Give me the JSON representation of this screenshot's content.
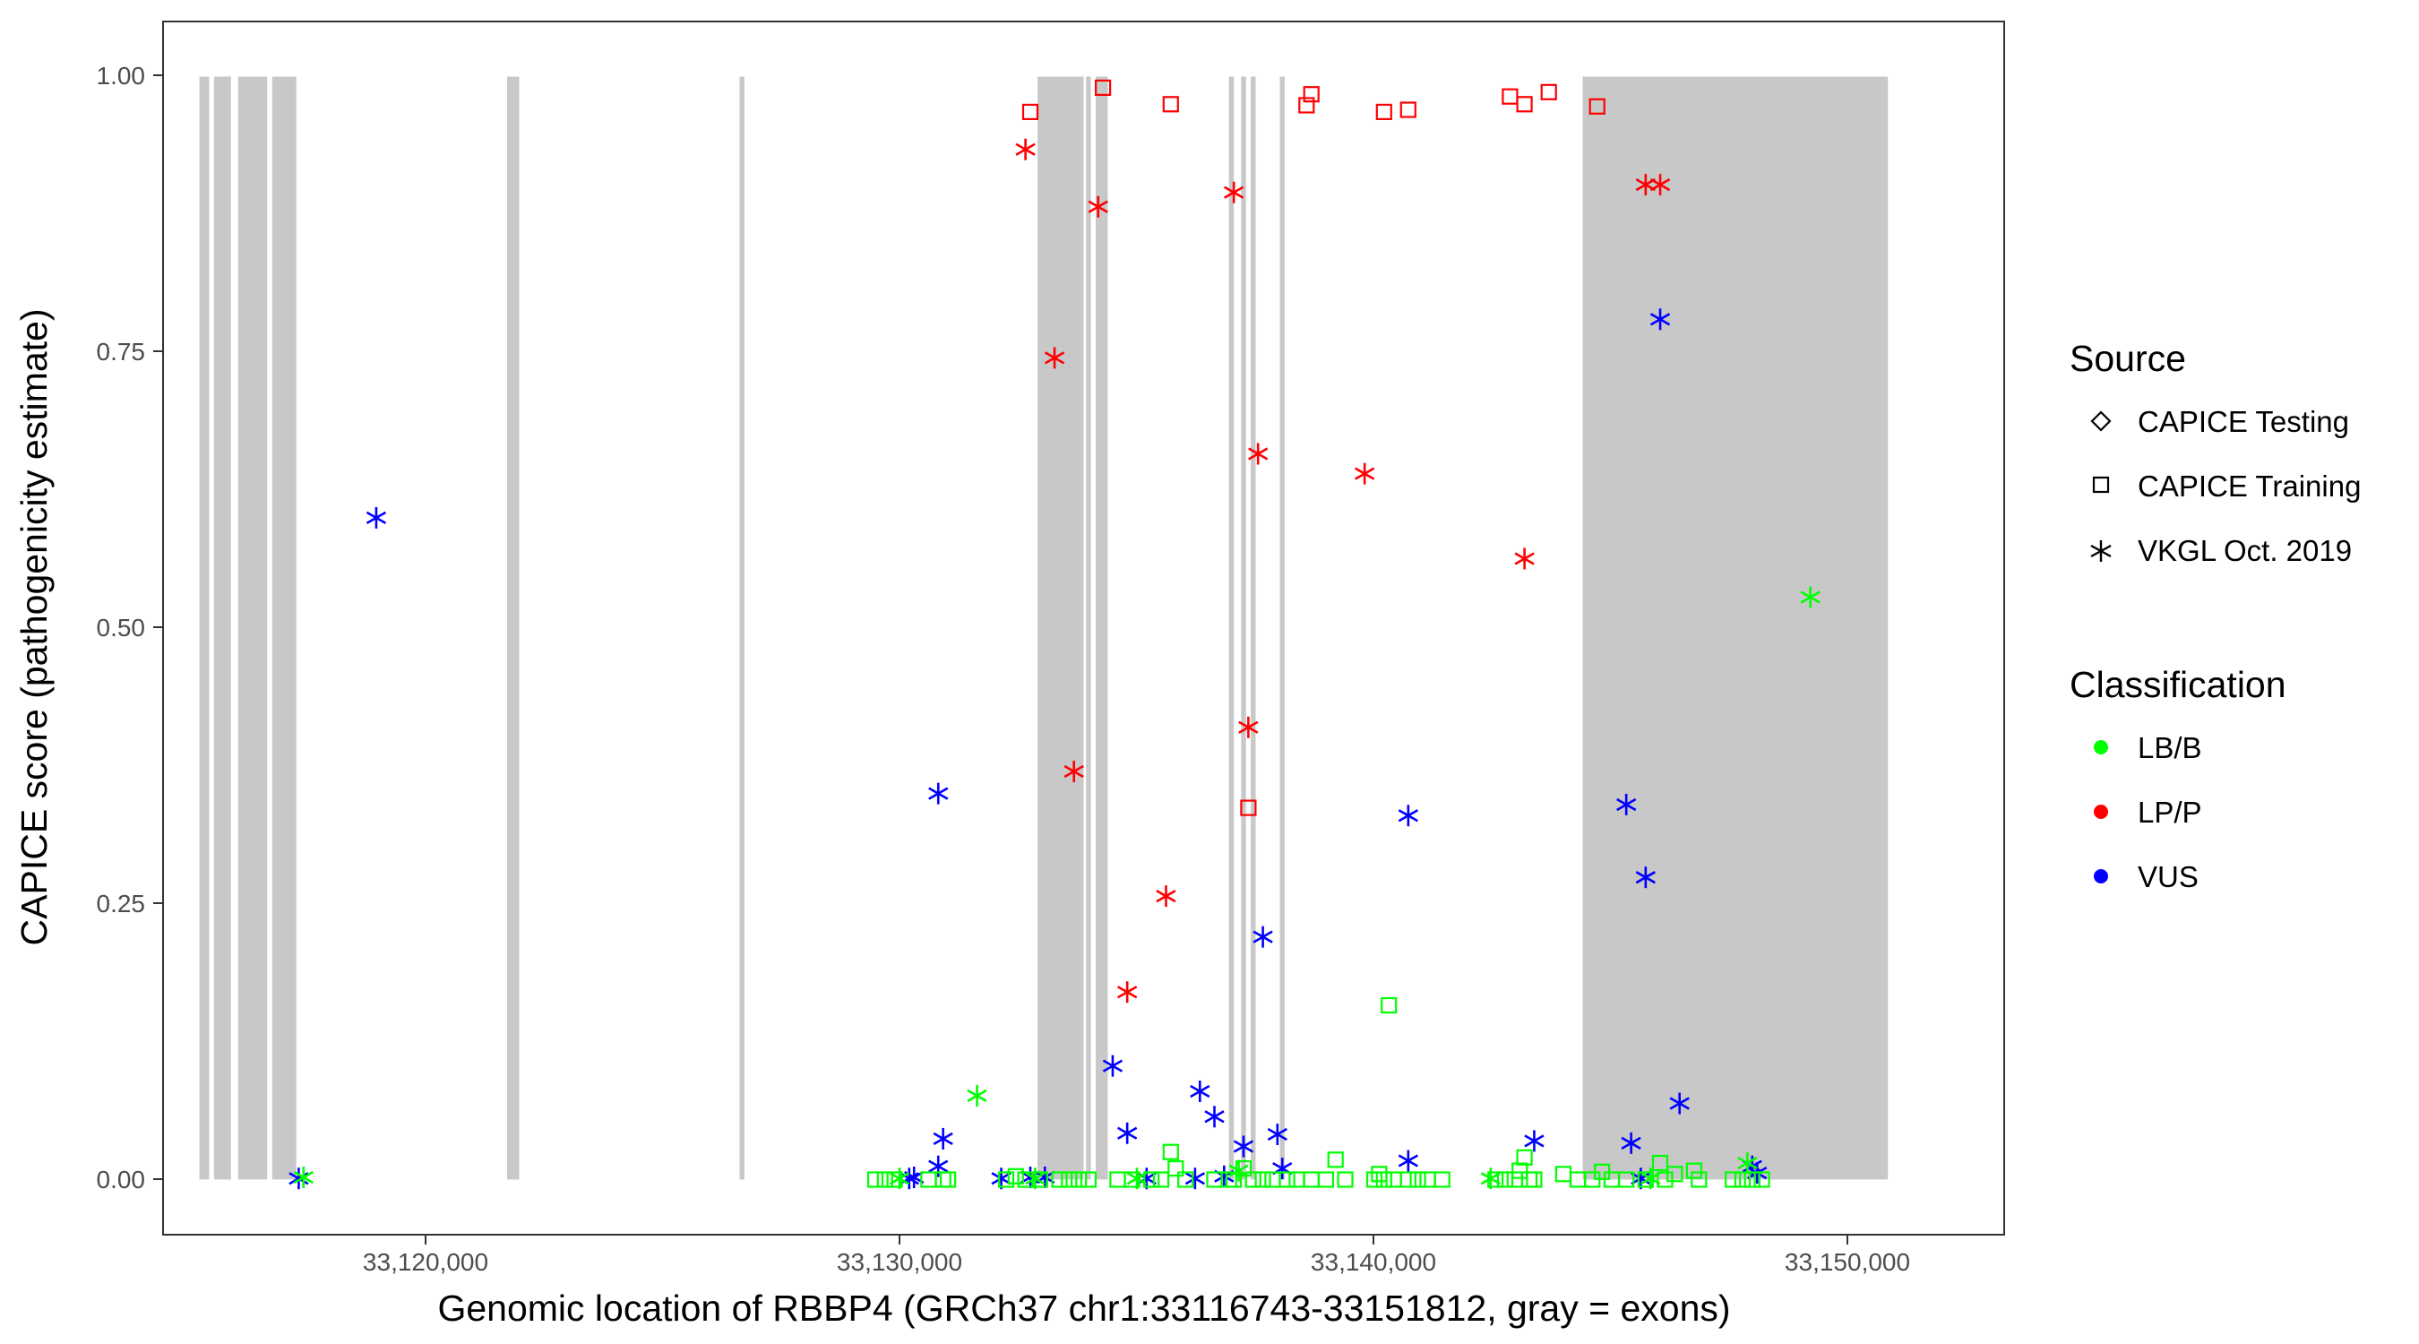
{
  "chart_data": {
    "type": "scatter",
    "xlabel": "Genomic location of RBBP4 (GRCh37 chr1:33116743-33151812, gray = exons)",
    "ylabel": "CAPICE score (pathogenicity estimate)",
    "xlim": [
      33116000,
      33154000
    ],
    "ylim": [
      -0.05,
      1.05
    ],
    "x_ticks": [
      33120000,
      33130000,
      33140000,
      33150000
    ],
    "x_tick_labels": [
      "33,120,000",
      "33,130,000",
      "33,140,000",
      "33,150,000"
    ],
    "y_ticks": [
      0,
      0.25,
      0.5,
      0.75,
      1.0
    ],
    "y_tick_labels": [
      "0.00",
      "0.25",
      "0.50",
      "0.75",
      "1.00"
    ],
    "grid": false,
    "exons": [
      [
        33116750,
        33116950
      ],
      [
        33117050,
        33117400
      ],
      [
        33117550,
        33118150
      ],
      [
        33118250,
        33118750
      ],
      [
        33123100,
        33123350
      ],
      [
        33127900,
        33128000
      ],
      [
        33134050,
        33135000
      ],
      [
        33135050,
        33135150
      ],
      [
        33135250,
        33135500
      ],
      [
        33138000,
        33138100
      ],
      [
        33138250,
        33138350
      ],
      [
        33138450,
        33138550
      ],
      [
        33139050,
        33139150
      ],
      [
        33145300,
        33151600
      ]
    ],
    "legend": {
      "position": "right",
      "source": {
        "title": "Source",
        "items": [
          {
            "label": "CAPICE Testing",
            "shape": "diamond"
          },
          {
            "label": "CAPICE Training",
            "shape": "square"
          },
          {
            "label": "VKGL Oct. 2019",
            "shape": "asterisk"
          }
        ]
      },
      "classification": {
        "title": "Classification",
        "items": [
          {
            "label": "LB/B",
            "color": "#00ff00"
          },
          {
            "label": "LP/P",
            "color": "#ff0000"
          },
          {
            "label": "VUS",
            "color": "#0000ff"
          }
        ]
      }
    },
    "series": [
      {
        "classification": "LP/P",
        "source": "CAPICE Training",
        "shape": "square",
        "color": "#ff0000",
        "points": [
          [
            33133900,
            0.968
          ],
          [
            33135400,
            0.99
          ],
          [
            33136800,
            0.975
          ],
          [
            33138400,
            0.337
          ],
          [
            33139600,
            0.974
          ],
          [
            33139700,
            0.984
          ],
          [
            33141200,
            0.968
          ],
          [
            33141700,
            0.97
          ],
          [
            33143800,
            0.982
          ],
          [
            33144100,
            0.975
          ],
          [
            33144600,
            0.986
          ],
          [
            33145600,
            0.973
          ]
        ]
      },
      {
        "classification": "LP/P",
        "source": "VKGL Oct. 2019",
        "shape": "asterisk",
        "color": "#ff0000",
        "points": [
          [
            33133800,
            0.934
          ],
          [
            33134400,
            0.745
          ],
          [
            33134800,
            0.37
          ],
          [
            33135300,
            0.882
          ],
          [
            33135900,
            0.17
          ],
          [
            33136700,
            0.257
          ],
          [
            33138100,
            0.895
          ],
          [
            33138400,
            0.41
          ],
          [
            33138600,
            0.658
          ],
          [
            33140800,
            0.64
          ],
          [
            33144100,
            0.563
          ],
          [
            33146600,
            0.902
          ],
          [
            33146900,
            0.902
          ]
        ]
      },
      {
        "classification": "VUS",
        "source": "VKGL Oct. 2019",
        "shape": "asterisk",
        "color": "#0000ff",
        "points": [
          [
            33118800,
            0.001
          ],
          [
            33120400,
            0.6
          ],
          [
            33131400,
            0.001
          ],
          [
            33131500,
            0.002
          ],
          [
            33132000,
            0.35
          ],
          [
            33132000,
            0.012
          ],
          [
            33132100,
            0.037
          ],
          [
            33133300,
            0.001
          ],
          [
            33133900,
            0.002
          ],
          [
            33134200,
            0.002
          ],
          [
            33135600,
            0.103
          ],
          [
            33135900,
            0.042
          ],
          [
            33136300,
            0.001
          ],
          [
            33137300,
            0.001
          ],
          [
            33137400,
            0.08
          ],
          [
            33137700,
            0.057
          ],
          [
            33137900,
            0.003
          ],
          [
            33138300,
            0.03
          ],
          [
            33138700,
            0.22
          ],
          [
            33139000,
            0.041
          ],
          [
            33139100,
            0.01
          ],
          [
            33141700,
            0.33
          ],
          [
            33141700,
            0.017
          ],
          [
            33144300,
            0.035
          ],
          [
            33146200,
            0.34
          ],
          [
            33146300,
            0.033
          ],
          [
            33146500,
            0.001
          ],
          [
            33146600,
            0.274
          ],
          [
            33146900,
            0.78
          ],
          [
            33147300,
            0.069
          ],
          [
            33148800,
            0.012
          ],
          [
            33148900,
            0.006
          ]
        ]
      },
      {
        "classification": "LB/B",
        "source": "VKGL Oct. 2019",
        "shape": "asterisk",
        "color": "#00ff00",
        "points": [
          [
            33118900,
            0.002
          ],
          [
            33131200,
            0.001
          ],
          [
            33132800,
            0.076
          ],
          [
            33134000,
            0.001
          ],
          [
            33136100,
            0.001
          ],
          [
            33138200,
            0.008
          ],
          [
            33143400,
            0.001
          ],
          [
            33146700,
            0.001
          ],
          [
            33148700,
            0.015
          ],
          [
            33150000,
            0.528
          ]
        ]
      },
      {
        "classification": "LB/B",
        "source": "CAPICE Training",
        "shape": "square",
        "color": "#00ff00",
        "points": [
          [
            33130700,
            0.0
          ],
          [
            33130900,
            0.0
          ],
          [
            33131100,
            0.0
          ],
          [
            33131800,
            0.0
          ],
          [
            33132100,
            0.0
          ],
          [
            33132200,
            0.0
          ],
          [
            33133400,
            0.0
          ],
          [
            33133600,
            0.003
          ],
          [
            33133800,
            0.0
          ],
          [
            33134100,
            0.0
          ],
          [
            33134500,
            0.0
          ],
          [
            33134700,
            0.0
          ],
          [
            33134900,
            0.0
          ],
          [
            33135100,
            0.0
          ],
          [
            33135700,
            0.0
          ],
          [
            33136000,
            0.0
          ],
          [
            33136400,
            0.0
          ],
          [
            33136600,
            0.0
          ],
          [
            33136800,
            0.025
          ],
          [
            33136900,
            0.01
          ],
          [
            33137100,
            0.0
          ],
          [
            33137700,
            0.0
          ],
          [
            33138000,
            0.0
          ],
          [
            33138100,
            0.0
          ],
          [
            33138300,
            0.01
          ],
          [
            33138500,
            0.0
          ],
          [
            33138700,
            0.0
          ],
          [
            33138900,
            0.0
          ],
          [
            33139200,
            0.0
          ],
          [
            33139400,
            0.0
          ],
          [
            33139700,
            0.0
          ],
          [
            33140000,
            0.0
          ],
          [
            33140200,
            0.018
          ],
          [
            33140400,
            0.0
          ],
          [
            33141000,
            0.0
          ],
          [
            33141100,
            0.005
          ],
          [
            33141200,
            0.0
          ],
          [
            33141300,
            0.158
          ],
          [
            33141400,
            0.0
          ],
          [
            33141700,
            0.0
          ],
          [
            33141900,
            0.0
          ],
          [
            33142100,
            0.0
          ],
          [
            33142400,
            0.0
          ],
          [
            33143500,
            0.0
          ],
          [
            33143700,
            0.0
          ],
          [
            33143900,
            0.0
          ],
          [
            33144000,
            0.008
          ],
          [
            33144100,
            0.02
          ],
          [
            33144200,
            0.0
          ],
          [
            33144300,
            0.0
          ],
          [
            33144900,
            0.005
          ],
          [
            33145200,
            0.0
          ],
          [
            33145500,
            0.0
          ],
          [
            33145700,
            0.007
          ],
          [
            33145900,
            0.0
          ],
          [
            33146200,
            0.0
          ],
          [
            33146600,
            0.0
          ],
          [
            33146900,
            0.015
          ],
          [
            33147000,
            0.0
          ],
          [
            33147200,
            0.005
          ],
          [
            33147600,
            0.008
          ],
          [
            33147700,
            0.0
          ],
          [
            33148400,
            0.0
          ],
          [
            33148600,
            0.0
          ],
          [
            33148800,
            0.0
          ],
          [
            33149000,
            0.0
          ]
        ]
      }
    ]
  }
}
